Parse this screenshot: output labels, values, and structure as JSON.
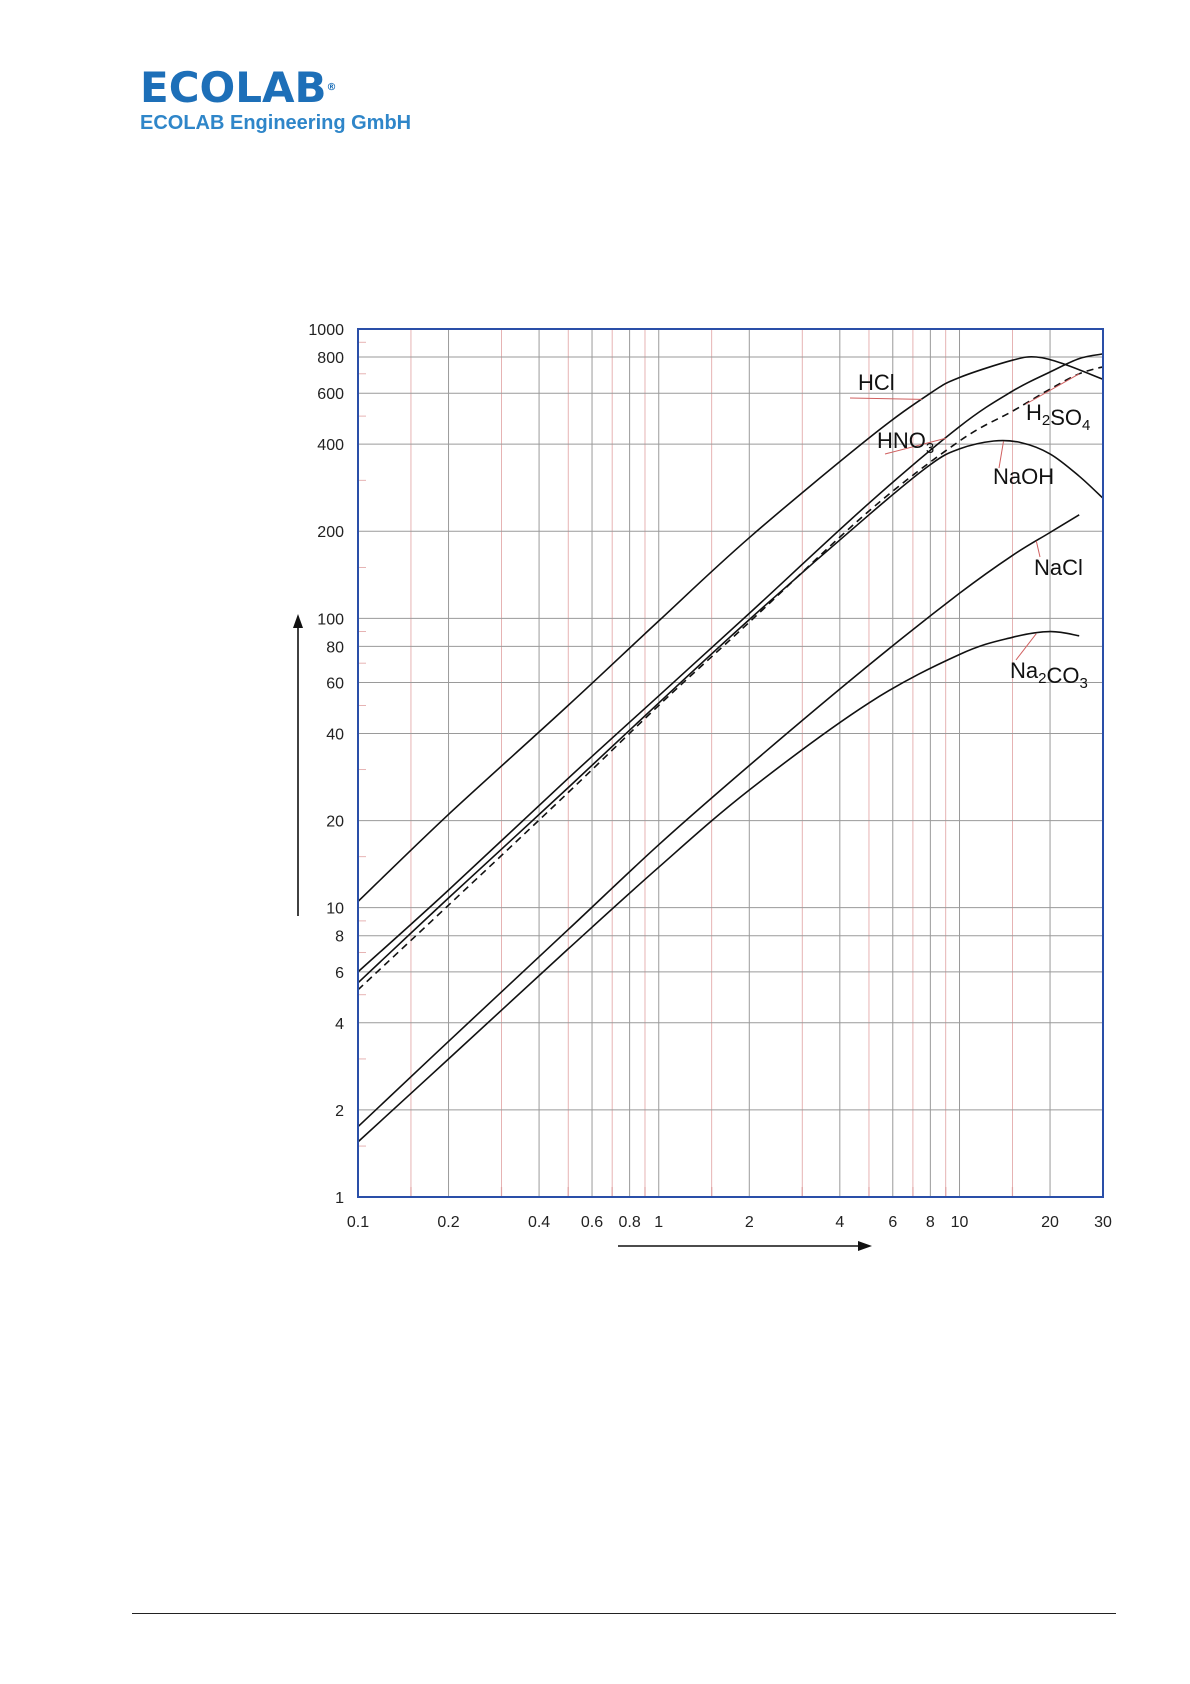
{
  "header": {
    "logo_text": "ECOLAB",
    "logo_mark": "®",
    "company": "ECOLAB Engineering GmbH",
    "brand_color": "#1d6fb8"
  },
  "chart_data": {
    "type": "line",
    "title": "",
    "xlabel": "",
    "ylabel": "",
    "xscale": "log",
    "yscale": "log",
    "xlim": [
      0.1,
      30
    ],
    "ylim": [
      1,
      1000
    ],
    "grid": true,
    "x_ticks": [
      "0.1",
      "0.2",
      "0.4",
      "0.6",
      "0.8",
      "1",
      "2",
      "4",
      "6",
      "8",
      "10",
      "20",
      "30"
    ],
    "x_tick_values": [
      0.1,
      0.2,
      0.4,
      0.6,
      0.8,
      1,
      2,
      4,
      6,
      8,
      10,
      20,
      30
    ],
    "y_ticks": [
      "1",
      "2",
      "4",
      "6",
      "8",
      "10",
      "20",
      "40",
      "60",
      "80",
      "100",
      "200",
      "400",
      "600",
      "800",
      "1000"
    ],
    "y_tick_values": [
      1,
      2,
      4,
      6,
      8,
      10,
      20,
      40,
      60,
      80,
      100,
      200,
      400,
      600,
      800,
      1000
    ],
    "series": [
      {
        "name": "HCl",
        "style": "solid",
        "x": [
          0.1,
          0.2,
          0.5,
          1,
          2,
          5,
          8,
          10,
          15,
          18,
          22,
          30
        ],
        "y": [
          10.5,
          21,
          50,
          98,
          190,
          420,
          600,
          680,
          780,
          800,
          760,
          670
        ]
      },
      {
        "name": "HNO3",
        "style": "solid",
        "x": [
          0.1,
          0.2,
          0.5,
          1,
          2,
          5,
          10,
          15,
          20,
          25,
          30
        ],
        "y": [
          6,
          11.5,
          28,
          54,
          104,
          250,
          460,
          610,
          710,
          790,
          820
        ]
      },
      {
        "name": "H2SO4",
        "style": "dashed",
        "x": [
          0.1,
          0.2,
          0.5,
          1,
          2,
          5,
          10,
          15,
          20,
          25,
          30
        ],
        "y": [
          5.2,
          10.2,
          25,
          50,
          97,
          235,
          410,
          520,
          620,
          700,
          740
        ]
      },
      {
        "name": "NaOH",
        "style": "solid",
        "x": [
          0.1,
          0.2,
          0.5,
          1,
          2,
          5,
          8,
          10,
          13,
          16,
          20,
          25,
          30
        ],
        "y": [
          5.5,
          10.8,
          26,
          51,
          99,
          228,
          340,
          385,
          410,
          405,
          370,
          310,
          260
        ]
      },
      {
        "name": "NaCl",
        "style": "solid",
        "x": [
          0.1,
          0.2,
          0.5,
          1,
          2,
          5,
          10,
          15,
          20,
          25
        ],
        "y": [
          1.75,
          3.45,
          8.4,
          16.5,
          31,
          69,
          122,
          165,
          198,
          228
        ]
      },
      {
        "name": "Na2CO3",
        "style": "solid",
        "x": [
          0.1,
          0.2,
          0.5,
          1,
          2,
          5,
          10,
          15,
          20,
          25
        ],
        "y": [
          1.55,
          3.0,
          7.2,
          13.8,
          25.5,
          51,
          75,
          86,
          90,
          87
        ]
      }
    ],
    "annotations": [
      {
        "series": "HCl",
        "at_x": 7.5,
        "parts": [
          {
            "t": "HCl",
            "sub": false
          }
        ]
      },
      {
        "series": "HNO3",
        "at_x": 9,
        "parts": [
          {
            "t": "HNO",
            "sub": false
          },
          {
            "t": "3",
            "sub": true
          }
        ]
      },
      {
        "series": "H2SO4",
        "at_x": 25,
        "parts": [
          {
            "t": "H",
            "sub": false
          },
          {
            "t": "2",
            "sub": true
          },
          {
            "t": "SO",
            "sub": false
          },
          {
            "t": "4",
            "sub": true
          }
        ]
      },
      {
        "series": "NaOH",
        "at_x": 14,
        "parts": [
          {
            "t": "NaOH",
            "sub": false
          }
        ]
      },
      {
        "series": "NaCl",
        "at_x": 18,
        "parts": [
          {
            "t": "NaCl",
            "sub": false
          }
        ]
      },
      {
        "series": "Na2CO3",
        "at_x": 18,
        "parts": [
          {
            "t": "Na",
            "sub": false
          },
          {
            "t": "2",
            "sub": true
          },
          {
            "t": "CO",
            "sub": false
          },
          {
            "t": "3",
            "sub": true
          }
        ]
      }
    ],
    "colors": {
      "frame": "#2a4fa8",
      "grid": "#9a9a9a",
      "grid_red": "#e0a0a0",
      "curve": "#111111"
    }
  }
}
